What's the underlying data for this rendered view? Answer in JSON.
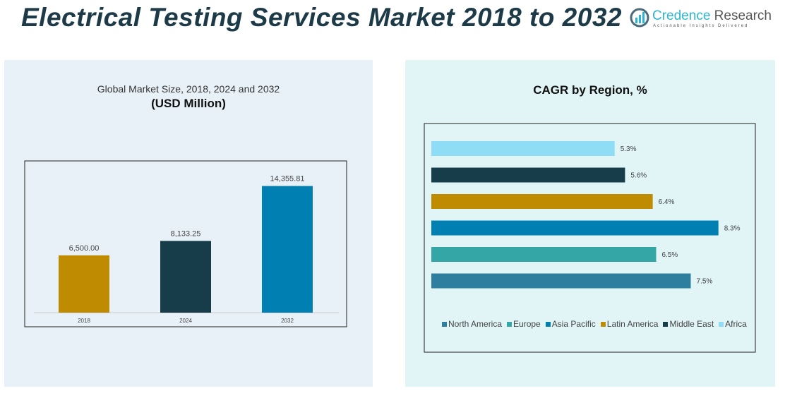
{
  "header": {
    "title": "Electrical Testing Services Market 2018 to 2032"
  },
  "logo": {
    "name_part1": "Credence",
    "name_part2": " Research",
    "tagline": "Actionable Insights Delivered"
  },
  "chart_data": [
    {
      "type": "bar",
      "title": "Global Market Size, 2018, 2024 and 2032",
      "subtitle": "(USD Million)",
      "categories": [
        "2018",
        "2024",
        "2032"
      ],
      "values": [
        6500.0,
        8133.25,
        14355.81
      ],
      "labels": [
        "6,500.00",
        "8,133.25",
        "14,355.81"
      ],
      "colors": [
        "#bf8b00",
        "#173d4b",
        "#0080b2"
      ],
      "ylim": [
        0,
        16000
      ],
      "grid": false
    },
    {
      "type": "bar",
      "orientation": "horizontal",
      "title": "CAGR by Region, %",
      "categories": [
        "Africa",
        "Middle East",
        "Latin America",
        "Asia Pacific",
        "Europe",
        "North America"
      ],
      "values": [
        5.3,
        5.6,
        6.4,
        8.3,
        6.5,
        7.5
      ],
      "labels": [
        "5.3%",
        "5.6%",
        "6.4%",
        "8.3%",
        "6.5%",
        "7.5%"
      ],
      "colors": [
        "#8edcf6",
        "#173d4b",
        "#bf8b00",
        "#0080b2",
        "#35a6a6",
        "#2e7f9f"
      ],
      "legend": [
        "North America",
        "Europe",
        "Asia Pacific",
        "Latin America",
        "Middle East",
        "Africa"
      ],
      "legend_colors": [
        "#2e7f9f",
        "#35a6a6",
        "#0080b2",
        "#bf8b00",
        "#173d4b",
        "#8edcf6"
      ],
      "legend_placement": "bottom",
      "xlim": [
        0,
        9.5
      ],
      "grid": false
    }
  ]
}
